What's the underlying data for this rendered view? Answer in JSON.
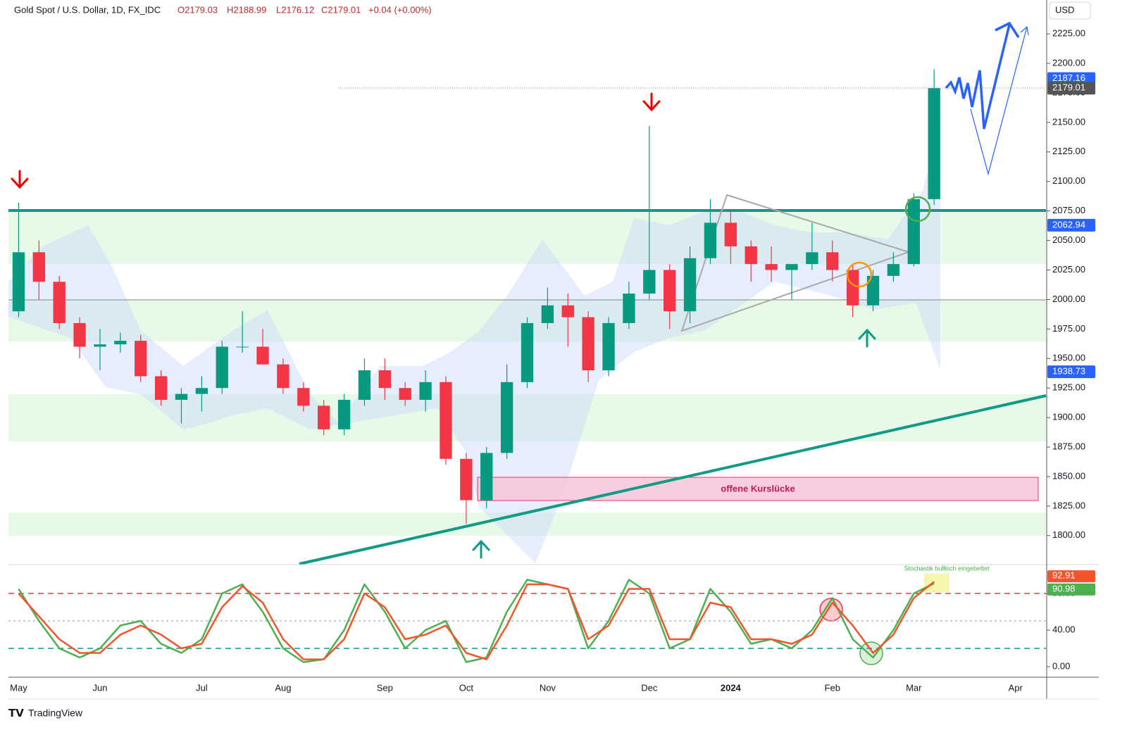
{
  "header": {
    "symbol": "Gold Spot / U.S. Dollar, 1D, FX_IDC",
    "ohlc": [
      "O2179.03",
      "H2188.99",
      "L2176.12",
      "C2179.01",
      "+0.04 (+0.00%)"
    ]
  },
  "currency": "USD",
  "annotations": {
    "gap": "offene Kurslücke",
    "stoch_note": "Stochastik bullisch eingebettet"
  },
  "brand": "TradingView",
  "categories": [
    "May",
    null,
    null,
    null,
    "Jun",
    null,
    null,
    null,
    null,
    "Jul",
    null,
    null,
    null,
    "Aug",
    null,
    null,
    null,
    null,
    "Sep",
    null,
    null,
    null,
    "Oct",
    null,
    null,
    null,
    "Nov",
    null,
    null,
    null,
    null,
    "Dec",
    null,
    null,
    null,
    "2024",
    null,
    null,
    null,
    null,
    "Feb",
    null,
    null,
    null,
    "Mar",
    null,
    null,
    null,
    null,
    "Apr",
    null
  ],
  "chart_data": [
    {
      "type": "candlestick",
      "up_color": "#089981",
      "down_color": "#f23645",
      "open": [
        1990,
        2040,
        2015,
        1980,
        1960,
        1962,
        1965,
        1935,
        1915,
        1920,
        1925,
        1960,
        1960,
        1945,
        1925,
        1910,
        1890,
        1915,
        1940,
        1925,
        1915,
        1930,
        1865,
        1830,
        1870,
        1930,
        1980,
        1995,
        1985,
        1940,
        1980,
        2005,
        2025,
        1990,
        2035,
        2065,
        2045,
        2030,
        2025,
        2030,
        2040,
        2025,
        1995,
        2020,
        2030,
        2085,
        null,
        null,
        null,
        null,
        null
      ],
      "high": [
        2082,
        2050,
        2020,
        1985,
        1975,
        1972,
        1970,
        1940,
        1925,
        1935,
        1965,
        1990,
        1975,
        1950,
        1930,
        1915,
        1920,
        1950,
        1950,
        1930,
        1940,
        1935,
        1870,
        1875,
        1945,
        1985,
        2010,
        2005,
        1990,
        1985,
        2015,
        2147,
        2030,
        2045,
        2085,
        2075,
        2050,
        2045,
        2030,
        2065,
        2050,
        2030,
        2025,
        2040,
        2090,
        2195,
        null,
        null,
        null,
        null,
        null
      ],
      "low": [
        1985,
        2000,
        1975,
        1950,
        1940,
        1955,
        1930,
        1910,
        1895,
        1905,
        1920,
        1955,
        1945,
        1920,
        1905,
        1885,
        1885,
        1910,
        1915,
        1910,
        1905,
        1860,
        1810,
        1823,
        1865,
        1925,
        1975,
        1960,
        1930,
        1935,
        1975,
        2000,
        1975,
        1980,
        2030,
        2030,
        2015,
        2015,
        2000,
        2025,
        2015,
        1985,
        1990,
        2015,
        2028,
        2080,
        null,
        null,
        null,
        null,
        null
      ],
      "close": [
        2040,
        2015,
        1980,
        1960,
        1962,
        1965,
        1935,
        1915,
        1920,
        1925,
        1960,
        1960,
        1945,
        1925,
        1910,
        1890,
        1915,
        1940,
        1925,
        1915,
        1930,
        1865,
        1830,
        1870,
        1930,
        1980,
        1995,
        1985,
        1940,
        1980,
        2005,
        2025,
        1990,
        2035,
        2065,
        2045,
        2030,
        2025,
        2030,
        2040,
        2025,
        1995,
        2020,
        2030,
        2085,
        2179.01,
        null,
        null,
        null,
        null,
        null
      ],
      "ylim": [
        1776.6,
        2253.7
      ],
      "yticks": [
        {
          "value": 1800,
          "label": "1800.00"
        },
        {
          "value": 1825,
          "label": "1825.00"
        },
        {
          "value": 1850,
          "label": "1850.00"
        },
        {
          "value": 1875,
          "label": "1875.00"
        },
        {
          "value": 1900,
          "label": "1900.00"
        },
        {
          "value": 1925,
          "label": "1925.00"
        },
        {
          "value": 1950,
          "label": "1950.00"
        },
        {
          "value": 1975,
          "label": "1975.00"
        },
        {
          "value": 2000,
          "label": "2000.00"
        },
        {
          "value": 2025,
          "label": "2025.00"
        },
        {
          "value": 2050,
          "label": "2050.00"
        },
        {
          "value": 2075,
          "label": "2075.00"
        },
        {
          "value": 2100,
          "label": "2100.00"
        },
        {
          "value": 2125,
          "label": "2125.00"
        },
        {
          "value": 2150,
          "label": "2150.00"
        },
        {
          "value": 2175,
          "label": "2175.00"
        },
        {
          "value": 2200,
          "label": "2200.00"
        },
        {
          "value": 2225,
          "label": "2225.00"
        }
      ],
      "price_labels": [
        {
          "value": 2187.16,
          "color": "#2962ff"
        },
        {
          "value": 2179.01,
          "color": "#555555"
        },
        {
          "value": 2062.94,
          "color": "#2962ff"
        },
        {
          "value": 1938.73,
          "color": "#2962ff"
        }
      ]
    },
    {
      "type": "line",
      "series": [
        {
          "name": "%K",
          "color": "#4caf50",
          "values": [
            85,
            50,
            20,
            10,
            20,
            45,
            50,
            25,
            15,
            30,
            80,
            90,
            60,
            20,
            5,
            8,
            40,
            90,
            60,
            20,
            40,
            50,
            5,
            10,
            60,
            95,
            90,
            85,
            20,
            50,
            95,
            80,
            20,
            30,
            85,
            60,
            25,
            30,
            20,
            40,
            75,
            30,
            10,
            40,
            80,
            90.98,
            null,
            null,
            null,
            null,
            null
          ]
        },
        {
          "name": "%D",
          "color": "#f2552c",
          "values": [
            80,
            55,
            30,
            15,
            15,
            35,
            45,
            35,
            20,
            25,
            65,
            88,
            70,
            30,
            8,
            8,
            30,
            80,
            65,
            30,
            35,
            45,
            15,
            8,
            45,
            90,
            90,
            85,
            30,
            45,
            85,
            85,
            30,
            30,
            70,
            65,
            30,
            30,
            25,
            35,
            70,
            45,
            15,
            35,
            75,
            92.91,
            null,
            null,
            null,
            null,
            null
          ]
        }
      ],
      "ylim": [
        -11.5,
        110.8
      ],
      "yticks": [
        {
          "value": 0,
          "label": "0.00"
        },
        {
          "value": 40,
          "label": "40.00"
        },
        {
          "value": 80,
          "label": "80.00"
        }
      ],
      "levels": [
        {
          "value": 80,
          "color": "#f23645"
        },
        {
          "value": 50,
          "color": "#b2b5be"
        },
        {
          "value": 20,
          "color": "#089981"
        }
      ]
    }
  ]
}
